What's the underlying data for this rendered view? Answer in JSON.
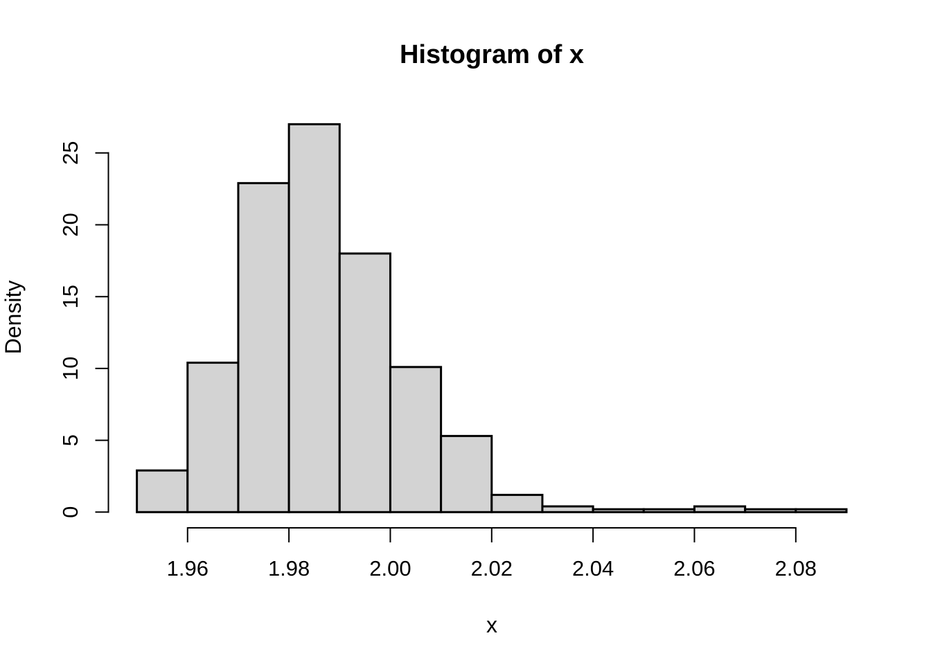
{
  "chart_data": {
    "type": "bar",
    "chart_kind": "histogram",
    "title": "Histogram of x",
    "xlabel": "x",
    "ylabel": "Density",
    "bin_start": 1.95,
    "bin_width": 0.01,
    "bin_edges": [
      1.95,
      1.96,
      1.97,
      1.98,
      1.99,
      2.0,
      2.01,
      2.02,
      2.03,
      2.04,
      2.05,
      2.06,
      2.07,
      2.08,
      2.09
    ],
    "densities": [
      2.9,
      10.4,
      22.9,
      27.0,
      18.0,
      10.1,
      5.3,
      1.2,
      0.4,
      0.2,
      0.2,
      0.4,
      0.2,
      0.2
    ],
    "x_ticks": {
      "values": [
        1.96,
        1.98,
        2.0,
        2.02,
        2.04,
        2.06,
        2.08
      ],
      "labels": [
        "1.96",
        "1.98",
        "2.00",
        "2.02",
        "2.04",
        "2.06",
        "2.08"
      ]
    },
    "y_ticks": {
      "values": [
        0,
        5,
        10,
        15,
        20,
        25
      ],
      "labels": [
        "0",
        "5",
        "10",
        "15",
        "20",
        "25"
      ]
    },
    "xlim": [
      1.95,
      2.09
    ],
    "ylim": [
      0,
      27
    ],
    "grid": false,
    "legend": null,
    "colors": {
      "bar_fill": "#d3d3d3",
      "bar_stroke": "#000000",
      "axis_color": "#000000",
      "text_color": "#000000",
      "background": "#ffffff"
    }
  }
}
